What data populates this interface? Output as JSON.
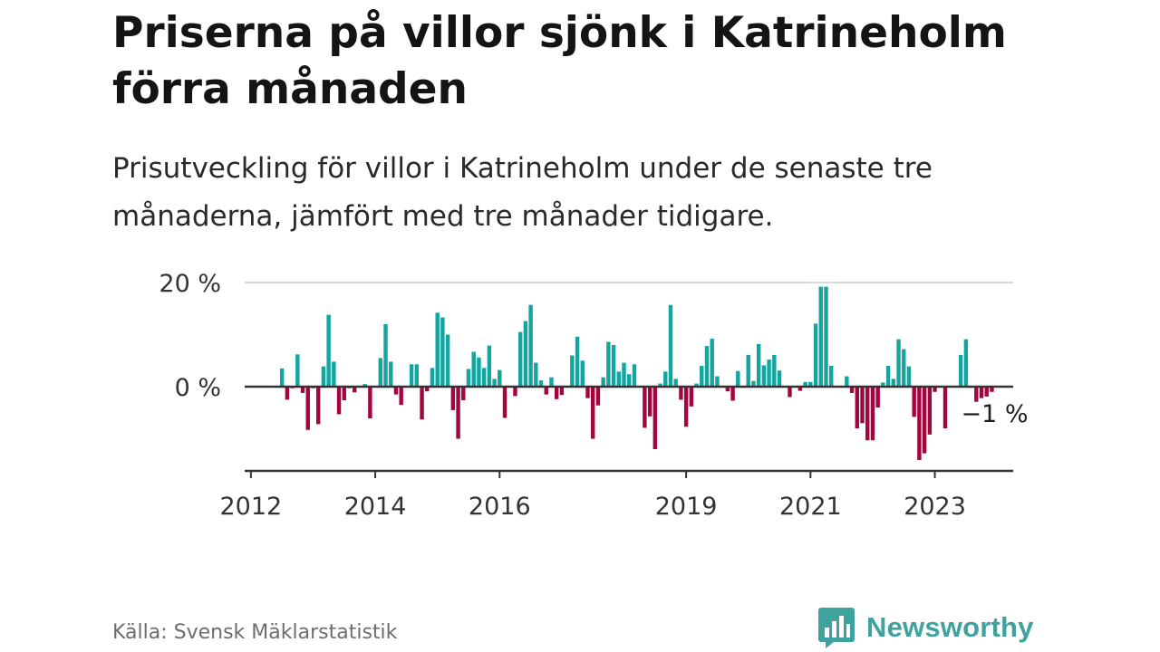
{
  "title": "Priserna på villor sjönk i Katrineholm förra månaden",
  "subtitle": "Prisutveckling för villor i Katrineholm under de senaste tre månaderna, jämfört med tre månader tidigare.",
  "source": "Källa: Svensk Mäklarstatistik",
  "brand": {
    "name": "Newsworthy",
    "logo_icon": "bar-chart-logo-icon"
  },
  "colors": {
    "positive": "#13a5a0",
    "negative": "#a3063f",
    "axis": "#333333",
    "grid": "#d9d9d9",
    "brand": "#3ea39e"
  },
  "chart_data": {
    "type": "bar",
    "unit": "%",
    "ylim": [
      -16,
      20
    ],
    "y_ticks": [
      {
        "value": 0,
        "label": "0 %"
      },
      {
        "value": 20,
        "label": "20 %"
      }
    ],
    "x_range": [
      2011.9,
      2024.26
    ],
    "x_ticks": [
      {
        "value": 2012,
        "label": "2012"
      },
      {
        "value": 2014,
        "label": "2014"
      },
      {
        "value": 2016,
        "label": "2016"
      },
      {
        "value": 2019,
        "label": "2019"
      },
      {
        "value": 2021,
        "label": "2021"
      },
      {
        "value": 2023,
        "label": "2023"
      }
    ],
    "grid": "horizontal at 20 %",
    "annotation": {
      "text": "−1 %",
      "position": "right of last bar"
    },
    "series": [
      {
        "start": "2012-07",
        "frequency": "monthly",
        "values": [
          3.5,
          -2.5,
          -0.3,
          6.2,
          -1.2,
          -8.3,
          -0.3,
          -7.2,
          3.9,
          13.8,
          4.8,
          -5.3,
          -2.6,
          -0.3,
          -1.1,
          0,
          0.5,
          -6.1,
          0,
          5.5,
          12,
          4.8,
          -1.5,
          -3.5,
          0,
          4.3,
          4.3,
          -6.3,
          -0.9,
          3.6,
          14.2,
          13.3,
          10,
          -4.5,
          -10,
          -2.6,
          3.4,
          6.7,
          5.6,
          3.6,
          7.9,
          1.5,
          3.2,
          -6,
          0,
          -1.8,
          10.5,
          12.6,
          15.7,
          4.6,
          1.2,
          -1.5,
          1.8,
          -2.4,
          -1.6,
          0,
          6,
          9.6,
          5,
          -2.2,
          -10,
          -3.6,
          1.8,
          8.6,
          8,
          2.9,
          4.6,
          2.4,
          4.3,
          0,
          -7.9,
          -5.7,
          -12,
          0.6,
          2.9,
          15.7,
          1.5,
          -2.5,
          -7.7,
          -3.8,
          0.6,
          4,
          7.8,
          9.2,
          2,
          0,
          -0.9,
          -2.7,
          3,
          -0.2,
          6.1,
          1.1,
          8.2,
          4.1,
          5.2,
          6.1,
          3.1,
          0,
          -2,
          0,
          -0.8,
          0.9,
          0.9,
          12.1,
          19.2,
          19.2,
          4,
          0,
          0,
          2,
          -1.2,
          -8,
          -7,
          -10.3,
          -10.3,
          -4,
          0.8,
          4,
          1.5,
          9.1,
          7.2,
          3.9,
          -5.8,
          -14.1,
          -12.8,
          -9.2,
          -1,
          0,
          -8,
          0,
          0,
          6.1,
          9.1,
          -0.2,
          -2.9,
          -2.2,
          -1.9,
          -1
        ]
      }
    ]
  }
}
